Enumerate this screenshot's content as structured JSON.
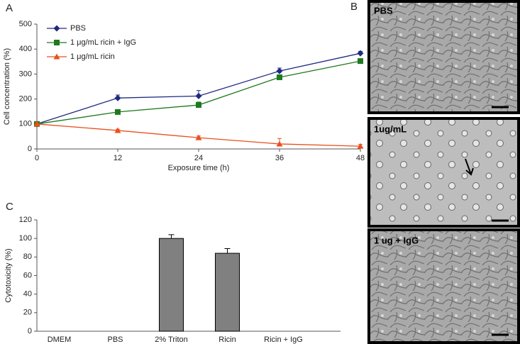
{
  "chart_data": [
    {
      "type": "line",
      "panel_label": "A",
      "xlabel": "Exposure time (h)",
      "ylabel": "Cell concentration (%)",
      "x": [
        0,
        12,
        24,
        36,
        48
      ],
      "xlim": [
        0,
        48
      ],
      "xticks": [
        0,
        12,
        24,
        36,
        48
      ],
      "ylim": [
        0,
        500
      ],
      "yticks": [
        0,
        100,
        200,
        300,
        400,
        500
      ],
      "legend": "upper left",
      "series": [
        {
          "name": "PBS",
          "color": "#1f2a80",
          "marker": "diamond",
          "values": [
            100,
            204,
            212,
            312,
            383
          ],
          "errors": [
            5,
            12,
            22,
            12,
            8
          ]
        },
        {
          "name": "1 μg/mL ricin + IgG",
          "color": "#1e7a1e",
          "marker": "square",
          "values": [
            100,
            148,
            176,
            287,
            352
          ],
          "errors": [
            3,
            5,
            12,
            10,
            5
          ]
        },
        {
          "name": "1 μg/mL ricin",
          "color": "#e8501e",
          "marker": "triangle",
          "values": [
            100,
            74,
            45,
            20,
            11
          ],
          "errors": [
            3,
            5,
            7,
            22,
            7
          ]
        }
      ]
    },
    {
      "type": "bar",
      "panel_label": "C",
      "ylabel": "Cytotoxicity (%)",
      "categories": [
        "DMEM",
        "PBS",
        "2% Triton",
        "Ricin",
        "Ricin + IgG"
      ],
      "values": [
        0,
        0,
        100,
        84,
        0
      ],
      "errors": [
        null,
        null,
        4,
        5,
        null
      ],
      "color": "#808080",
      "ylim": [
        0,
        120
      ],
      "yticks": [
        0,
        20,
        40,
        60,
        80,
        100,
        120
      ]
    }
  ],
  "images": {
    "panel_label": "B",
    "labels": [
      "PBS",
      "1ug/mL",
      "1 ug + IgG"
    ]
  }
}
